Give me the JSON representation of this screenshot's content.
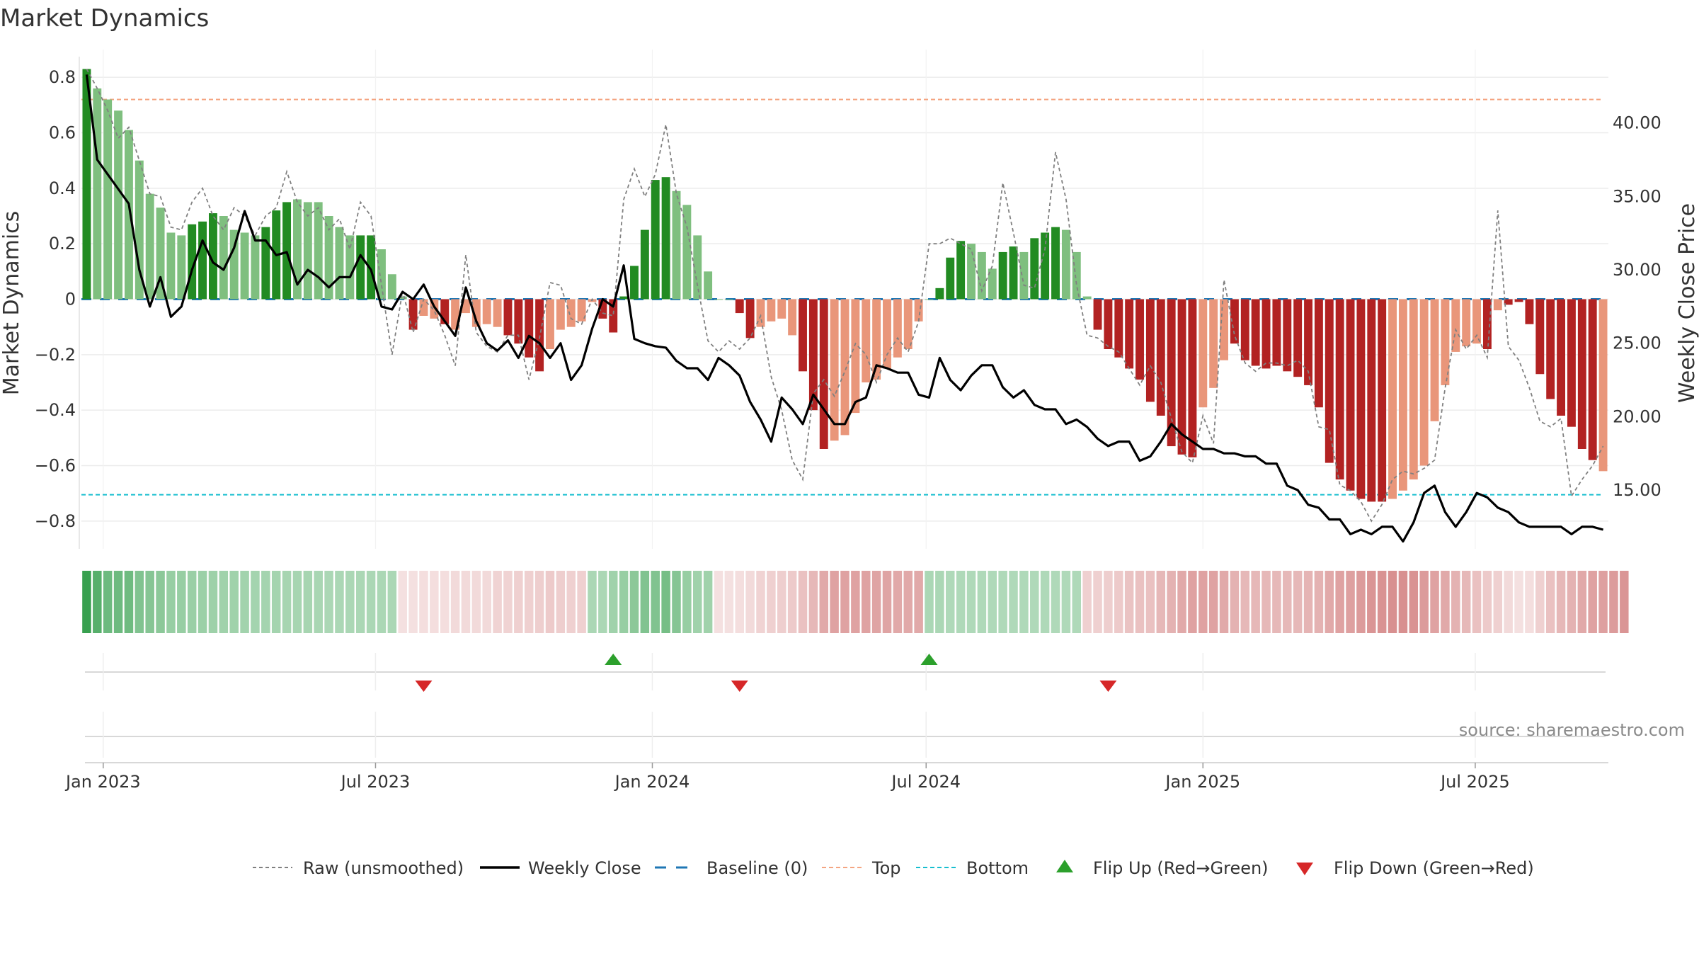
{
  "title": "Market Dynamics",
  "source": "source: sharemaestro.com",
  "colors": {
    "strong_green": "#228b22",
    "light_green": "#7fbf7f",
    "strong_red": "#b22222",
    "light_red": "#e9967a",
    "close": "#000000",
    "raw": "#808080",
    "baseline": "#1f77b4",
    "top": "#f4a582",
    "bottom": "#17becf",
    "flip_up": "#2ca02c",
    "flip_down": "#d62728"
  },
  "chart_data": {
    "type": "bar",
    "start_date": "2022-12-21",
    "x_ticks": [
      "Jan 2023",
      "Jul 2023",
      "Jan 2024",
      "Jul 2024",
      "Jan 2025",
      "Jul 2025"
    ],
    "x_tick_dates": [
      "2023-01-01",
      "2023-07-01",
      "2024-01-01",
      "2024-07-01",
      "2025-01-01",
      "2025-07-01"
    ],
    "y_left_label": "Market Dynamics",
    "y_left_ticks": [
      "0.8",
      "0.6",
      "0.4",
      "0.2",
      "0",
      "−0.2",
      "−0.4",
      "−0.6",
      "−0.8"
    ],
    "y_left_tick_values": [
      0.8,
      0.6,
      0.4,
      0.2,
      0,
      -0.2,
      -0.4,
      -0.6,
      -0.8
    ],
    "y_left_lim": [
      -0.9,
      0.9
    ],
    "y_right_label": "Weekly Close Price",
    "y_right_ticks": [
      "40.00",
      "35.00",
      "30.00",
      "25.00",
      "20.00",
      "15.00"
    ],
    "y_right_tick_values": [
      40,
      35,
      30,
      25,
      20,
      15
    ],
    "y_right_lim": [
      11,
      45
    ],
    "top_line": 0.72,
    "bottom_line": -0.705,
    "bars_dynamics": [
      0.83,
      0.76,
      0.72,
      0.68,
      0.61,
      0.5,
      0.38,
      0.33,
      0.24,
      0.23,
      0.27,
      0.28,
      0.31,
      0.3,
      0.25,
      0.24,
      0.23,
      0.26,
      0.32,
      0.35,
      0.36,
      0.35,
      0.35,
      0.3,
      0.26,
      0.23,
      0.23,
      0.23,
      0.18,
      0.09,
      0.01,
      -0.11,
      -0.06,
      -0.07,
      -0.09,
      -0.11,
      -0.05,
      -0.1,
      -0.09,
      -0.1,
      -0.13,
      -0.16,
      -0.21,
      -0.26,
      -0.18,
      -0.11,
      -0.1,
      -0.08,
      -0.01,
      -0.07,
      -0.12,
      0.01,
      0.12,
      0.25,
      0.43,
      0.44,
      0.39,
      0.34,
      0.23,
      0.1,
      0,
      0,
      -0.05,
      -0.14,
      -0.1,
      -0.08,
      -0.07,
      -0.13,
      -0.26,
      -0.4,
      -0.54,
      -0.51,
      -0.49,
      -0.41,
      -0.3,
      -0.29,
      -0.25,
      -0.21,
      -0.18,
      -0.08,
      0,
      0.04,
      0.15,
      0.21,
      0.2,
      0.17,
      0.11,
      0.17,
      0.19,
      0.17,
      0.22,
      0.24,
      0.26,
      0.25,
      0.17,
      0.01,
      -0.11,
      -0.18,
      -0.21,
      -0.25,
      -0.29,
      -0.37,
      -0.42,
      -0.53,
      -0.56,
      -0.57,
      -0.39,
      -0.32,
      -0.22,
      -0.16,
      -0.22,
      -0.24,
      -0.25,
      -0.24,
      -0.26,
      -0.28,
      -0.31,
      -0.39,
      -0.59,
      -0.65,
      -0.69,
      -0.72,
      -0.73,
      -0.73,
      -0.72,
      -0.69,
      -0.65,
      -0.6,
      -0.44,
      -0.31,
      -0.19,
      -0.17,
      -0.16,
      -0.18,
      -0.04,
      -0.02,
      -0.01,
      -0.09,
      -0.27,
      -0.36,
      -0.42,
      -0.46,
      -0.54,
      -0.58,
      -0.62
    ],
    "bars_strength": [
      "s",
      "l",
      "l",
      "l",
      "l",
      "l",
      "l",
      "l",
      "l",
      "l",
      "s",
      "s",
      "s",
      "l",
      "l",
      "l",
      "l",
      "s",
      "s",
      "s",
      "l",
      "l",
      "l",
      "l",
      "l",
      "l",
      "s",
      "s",
      "l",
      "l",
      "l",
      "s",
      "l",
      "l",
      "s",
      "l",
      "l",
      "l",
      "l",
      "l",
      "s",
      "s",
      "s",
      "s",
      "l",
      "l",
      "l",
      "l",
      "l",
      "s",
      "s",
      "s",
      "s",
      "s",
      "s",
      "s",
      "l",
      "l",
      "l",
      "l",
      "l",
      "l",
      "s",
      "s",
      "l",
      "l",
      "l",
      "l",
      "s",
      "s",
      "s",
      "l",
      "l",
      "l",
      "l",
      "l",
      "l",
      "l",
      "l",
      "l",
      "l",
      "s",
      "s",
      "s",
      "l",
      "l",
      "l",
      "s",
      "s",
      "l",
      "s",
      "s",
      "s",
      "l",
      "l",
      "l",
      "s",
      "s",
      "s",
      "s",
      "s",
      "s",
      "s",
      "s",
      "s",
      "s",
      "l",
      "l",
      "l",
      "s",
      "s",
      "s",
      "s",
      "s",
      "s",
      "s",
      "s",
      "s",
      "s",
      "s",
      "s",
      "s",
      "s",
      "s",
      "l",
      "l",
      "l",
      "l",
      "l",
      "l",
      "l",
      "l",
      "l",
      "s",
      "l",
      "s",
      "s",
      "s",
      "s",
      "s",
      "s",
      "s",
      "s",
      "s"
    ],
    "weekly_close": [
      43.3,
      37.5,
      36.5,
      35.5,
      34.5,
      30.0,
      27.5,
      29.5,
      26.8,
      27.5,
      30.0,
      32.0,
      30.5,
      30.0,
      31.5,
      34.0,
      32.0,
      32.0,
      31.0,
      31.2,
      29.0,
      30.0,
      29.5,
      28.8,
      29.5,
      29.5,
      31.0,
      30.0,
      27.5,
      27.3,
      28.5,
      28.0,
      29.0,
      27.5,
      26.5,
      25.5,
      28.8,
      26.5,
      25.0,
      24.5,
      25.2,
      24.0,
      25.5,
      25.0,
      24.0,
      25.0,
      22.5,
      23.5,
      26.0,
      28.0,
      27.5,
      30.3,
      25.3,
      25.0,
      24.8,
      24.7,
      23.8,
      23.3,
      23.3,
      22.5,
      24.0,
      23.5,
      22.8,
      21.0,
      19.8,
      18.3,
      21.3,
      20.5,
      19.5,
      21.5,
      20.5,
      19.5,
      19.5,
      21.0,
      21.3,
      23.5,
      23.3,
      23.0,
      23.0,
      21.5,
      21.3,
      24.0,
      22.5,
      21.8,
      22.8,
      23.5,
      23.5,
      22.0,
      21.3,
      21.8,
      20.8,
      20.5,
      20.5,
      19.5,
      19.8,
      19.3,
      18.5,
      18.0,
      18.3,
      18.3,
      17.0,
      17.3,
      18.3,
      19.5,
      18.8,
      18.3,
      17.8,
      17.8,
      17.5,
      17.5,
      17.3,
      17.3,
      16.8,
      16.8,
      15.3,
      15.0,
      14.0,
      13.8,
      13.0,
      13.0,
      12.0,
      12.3,
      12.0,
      12.5,
      12.5,
      11.5,
      12.8,
      14.8,
      15.3,
      13.5,
      12.5,
      13.5,
      14.8,
      14.5,
      13.8,
      13.5,
      12.8,
      12.5,
      12.5,
      12.5,
      12.5,
      12.0,
      12.5,
      12.5,
      12.3
    ],
    "raw_dynamics": [
      0.83,
      0.76,
      0.68,
      0.58,
      0.62,
      0.5,
      0.38,
      0.37,
      0.26,
      0.25,
      0.35,
      0.4,
      0.3,
      0.25,
      0.33,
      0.3,
      0.23,
      0.3,
      0.33,
      0.46,
      0.35,
      0.3,
      0.33,
      0.25,
      0.29,
      0.18,
      0.35,
      0.3,
      0.05,
      -0.2,
      0.03,
      -0.12,
      0.0,
      -0.04,
      -0.13,
      -0.24,
      0.16,
      -0.12,
      -0.17,
      -0.19,
      -0.13,
      -0.13,
      -0.29,
      -0.14,
      0.06,
      0.05,
      -0.07,
      -0.09,
      0.0,
      -0.05,
      -0.06,
      0.36,
      0.47,
      0.37,
      0.45,
      0.63,
      0.38,
      0.26,
      0.05,
      -0.15,
      -0.19,
      -0.15,
      -0.18,
      -0.14,
      -0.06,
      -0.28,
      -0.4,
      -0.58,
      -0.65,
      -0.34,
      -0.29,
      -0.35,
      -0.26,
      -0.16,
      -0.2,
      -0.3,
      -0.2,
      -0.14,
      -0.19,
      -0.08,
      0.2,
      0.2,
      0.22,
      0.2,
      0.18,
      0.03,
      0.12,
      0.42,
      0.24,
      0.05,
      0.04,
      0.18,
      0.53,
      0.36,
      0.05,
      -0.13,
      -0.14,
      -0.17,
      -0.19,
      -0.25,
      -0.31,
      -0.24,
      -0.3,
      -0.43,
      -0.55,
      -0.59,
      -0.42,
      -0.52,
      0.07,
      -0.13,
      -0.23,
      -0.26,
      -0.23,
      -0.23,
      -0.24,
      -0.22,
      -0.26,
      -0.46,
      -0.47,
      -0.67,
      -0.69,
      -0.73,
      -0.8,
      -0.74,
      -0.65,
      -0.62,
      -0.63,
      -0.61,
      -0.58,
      -0.32,
      -0.11,
      -0.18,
      -0.13,
      -0.21,
      0.32,
      -0.17,
      -0.22,
      -0.32,
      -0.44,
      -0.46,
      -0.43,
      -0.71,
      -0.65,
      -0.6,
      -0.53
    ],
    "flip_up_week": [
      50,
      80
    ],
    "flip_down_week": [
      32,
      62,
      97
    ],
    "sentiment_strip": [
      0.95,
      0.8,
      0.7,
      0.7,
      0.68,
      0.6,
      0.58,
      0.55,
      0.5,
      0.5,
      0.48,
      0.47,
      0.46,
      0.45,
      0.45,
      0.44,
      0.43,
      0.43,
      0.43,
      0.42,
      0.42,
      0.42,
      0.41,
      0.4,
      0.4,
      0.4,
      0.4,
      0.4,
      0.4,
      0.4,
      -0.2,
      -0.2,
      -0.22,
      -0.22,
      -0.22,
      -0.25,
      -0.25,
      -0.25,
      -0.25,
      -0.28,
      -0.28,
      -0.3,
      -0.3,
      -0.32,
      -0.35,
      -0.32,
      -0.3,
      -0.3,
      0.4,
      0.4,
      0.45,
      0.5,
      0.55,
      0.6,
      0.6,
      0.65,
      0.58,
      0.5,
      0.45,
      0.45,
      -0.2,
      -0.2,
      -0.22,
      -0.25,
      -0.28,
      -0.3,
      -0.32,
      -0.35,
      -0.4,
      -0.45,
      -0.55,
      -0.6,
      -0.6,
      -0.6,
      -0.6,
      -0.58,
      -0.58,
      -0.55,
      -0.55,
      -0.55,
      0.4,
      0.4,
      0.38,
      0.38,
      0.38,
      0.38,
      0.38,
      0.38,
      0.38,
      0.38,
      0.38,
      0.38,
      0.38,
      0.38,
      0.38,
      -0.3,
      -0.3,
      -0.32,
      -0.35,
      -0.38,
      -0.4,
      -0.4,
      -0.45,
      -0.5,
      -0.55,
      -0.6,
      -0.6,
      -0.6,
      -0.55,
      -0.5,
      -0.45,
      -0.45,
      -0.45,
      -0.45,
      -0.45,
      -0.45,
      -0.48,
      -0.5,
      -0.55,
      -0.6,
      -0.62,
      -0.65,
      -0.68,
      -0.7,
      -0.72,
      -0.72,
      -0.7,
      -0.65,
      -0.6,
      -0.55,
      -0.5,
      -0.45,
      -0.4,
      -0.35,
      -0.3,
      -0.25,
      -0.2,
      -0.22,
      -0.3,
      -0.4,
      -0.45,
      -0.5,
      -0.55,
      -0.6,
      -0.62,
      -0.65,
      -0.68
    ]
  },
  "legend": [
    {
      "label": "Raw (unsmoothed)",
      "style": "dashed-gray"
    },
    {
      "label": "Weekly Close",
      "style": "solid-black"
    },
    {
      "label": "Baseline (0)",
      "style": "dashed-blue"
    },
    {
      "label": "Top",
      "style": "dashed-orange"
    },
    {
      "label": "Bottom",
      "style": "dashed-cyan"
    },
    {
      "label": "Flip Up (Red→Green)",
      "style": "triangle-up"
    },
    {
      "label": "Flip Down (Green→Red)",
      "style": "triangle-down"
    }
  ]
}
